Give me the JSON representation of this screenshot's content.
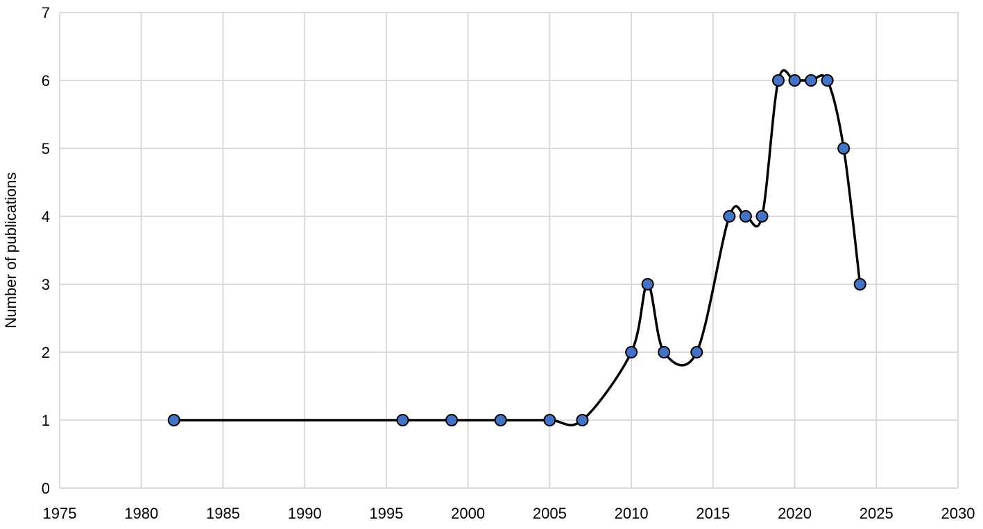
{
  "chart_data": {
    "type": "line",
    "title": "",
    "xlabel": "",
    "ylabel": "Number of publications",
    "xlim": [
      1975,
      2030
    ],
    "ylim": [
      0,
      7
    ],
    "xticks": [
      1975,
      1980,
      1985,
      1990,
      1995,
      2000,
      2005,
      2010,
      2015,
      2020,
      2025,
      2030
    ],
    "yticks": [
      0,
      1,
      2,
      3,
      4,
      5,
      6,
      7
    ],
    "grid": true,
    "smoothed": true,
    "legend": "none",
    "colors": {
      "line": "#000000",
      "marker_fill": "#4472C4",
      "marker_edge": "#000000",
      "grid": "#D9D9D9"
    },
    "series": [
      {
        "x": [
          1982,
          1996,
          1999,
          2002,
          2005,
          2007,
          2010,
          2011,
          2012,
          2014,
          2016,
          2017,
          2018,
          2019,
          2020,
          2021,
          2022,
          2023,
          2024
        ],
        "y": [
          1,
          1,
          1,
          1,
          1,
          1,
          2,
          3,
          2,
          2,
          4,
          4,
          4,
          6,
          6,
          6,
          6,
          5,
          3
        ]
      }
    ]
  }
}
